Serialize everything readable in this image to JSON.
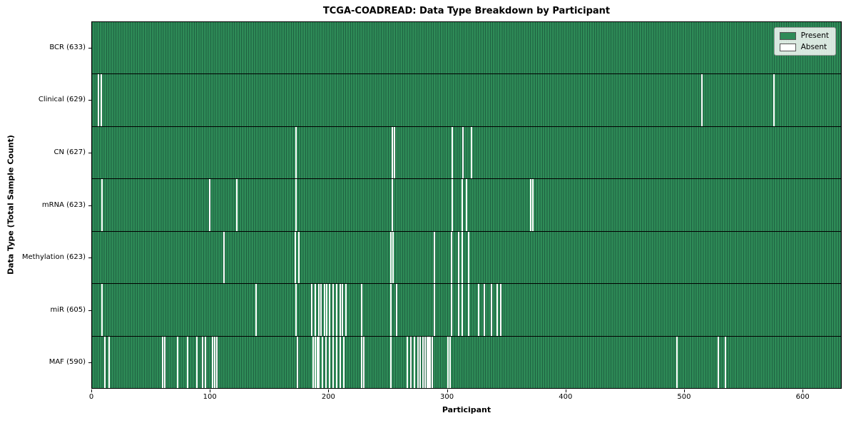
{
  "title": "TCGA-COADREAD: Data Type Breakdown by Participant",
  "xlabel": "Participant",
  "ylabel": "Data Type (Total Sample Count)",
  "legend": {
    "present_label": "Present",
    "absent_label": "Absent"
  },
  "colors": {
    "present": "#2e8b57",
    "present_edge": "#1e6141",
    "absent": "#ffffff",
    "plot_border": "#000000",
    "row_divider": "#000000",
    "legend_bg": "rgba(255,255,255,0.82)"
  },
  "x_ticks": [
    0,
    100,
    200,
    300,
    400,
    500,
    600
  ],
  "chart_data": {
    "type": "heatmap",
    "title": "TCGA-COADREAD: Data Type Breakdown by Participant",
    "xlabel": "Participant",
    "ylabel": "Data Type (Total Sample Count)",
    "legend_entries": [
      "Present",
      "Absent"
    ],
    "legend_position": "upper right",
    "n_participants": 633,
    "x_range": [
      0,
      633
    ],
    "x_tick_labels": [
      "0",
      "100",
      "200",
      "300",
      "400",
      "500",
      "600"
    ],
    "rows": [
      {
        "name": "BCR",
        "label": "BCR (633)",
        "present_count": 633,
        "absent_count": 0,
        "absent_participants": []
      },
      {
        "name": "Clinical",
        "label": "Clinical (629)",
        "present_count": 629,
        "absent_count": 4,
        "absent_participants": [
          5,
          7,
          515,
          576
        ]
      },
      {
        "name": "CN",
        "label": "CN (627)",
        "present_count": 627,
        "absent_count": 6,
        "absent_participants": [
          172,
          253,
          255,
          304,
          313,
          320
        ]
      },
      {
        "name": "mRNA",
        "label": "mRNA (623)",
        "present_count": 623,
        "absent_count": 10,
        "absent_participants": [
          8,
          99,
          122,
          172,
          253,
          304,
          312,
          316,
          370,
          372
        ]
      },
      {
        "name": "Methylation",
        "label": "Methylation (623)",
        "present_count": 623,
        "absent_count": 10,
        "absent_participants": [
          111,
          171,
          174,
          252,
          254,
          289,
          303,
          309,
          312,
          318
        ]
      },
      {
        "name": "miR",
        "label": "miR (605)",
        "present_count": 605,
        "absent_count": 28,
        "absent_participants": [
          8,
          138,
          172,
          185,
          188,
          191,
          193,
          196,
          198,
          200,
          203,
          206,
          209,
          211,
          214,
          227,
          252,
          257,
          289,
          303,
          309,
          312,
          318,
          326,
          331,
          337,
          342,
          345
        ]
      },
      {
        "name": "MAF",
        "label": "MAF (590)",
        "present_count": 590,
        "absent_count": 43,
        "absent_participants": [
          10,
          14,
          59,
          61,
          72,
          80,
          88,
          93,
          95,
          101,
          103,
          105,
          173,
          186,
          188,
          190,
          191,
          194,
          197,
          200,
          203,
          206,
          209,
          212,
          227,
          229,
          252,
          266,
          269,
          272,
          275,
          277,
          279,
          281,
          283,
          284,
          285,
          287,
          300,
          302,
          494,
          529,
          535
        ]
      }
    ]
  }
}
